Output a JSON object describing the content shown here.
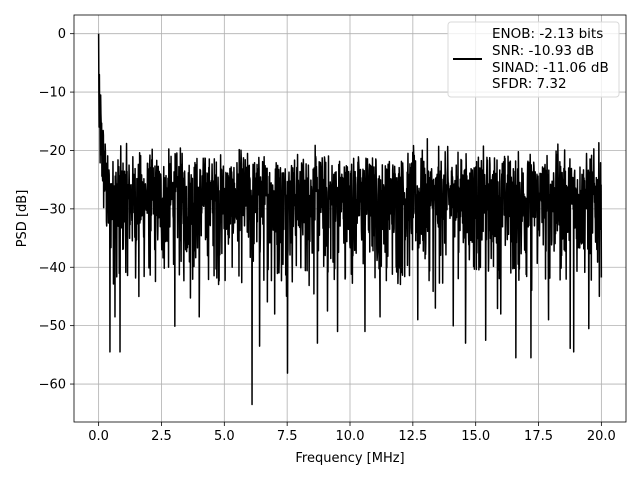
{
  "chart_data": {
    "type": "line",
    "title": "",
    "xlabel": "Frequency [MHz]",
    "ylabel": "PSD [dB]",
    "xlim": [
      -0.98,
      20.98
    ],
    "ylim": [
      -66.5,
      3.2
    ],
    "grid": true,
    "legend_position": "top-right",
    "xticks": [
      0.0,
      2.5,
      5.0,
      7.5,
      10.0,
      12.5,
      15.0,
      17.5,
      20.0
    ],
    "xtick_labels": [
      "0.0",
      "2.5",
      "5.0",
      "7.5",
      "10.0",
      "12.5",
      "15.0",
      "17.5",
      "20.0"
    ],
    "yticks": [
      0,
      -10,
      -20,
      -30,
      -40,
      -50,
      -60
    ],
    "ytick_labels": [
      "0",
      "−10",
      "−20",
      "−30",
      "−40",
      "−50",
      "−60"
    ],
    "series": [
      {
        "color": "#000000",
        "sample_count": 2000,
        "x_range": [
          0.0,
          20.0
        ],
        "dc_peak": {
          "x": 0.0,
          "y": 0.0
        },
        "noise_floor_mean": -29,
        "upper_envelope": -17,
        "lower_envelope": -43,
        "deep_nulls": [
          {
            "x": 0.45,
            "y": -54.5
          },
          {
            "x": 0.85,
            "y": -54.5
          },
          {
            "x": 0.65,
            "y": -48.5
          },
          {
            "x": 1.6,
            "y": -45.0
          },
          {
            "x": 4.0,
            "y": -48.5
          },
          {
            "x": 6.1,
            "y": -63.5
          },
          {
            "x": 6.4,
            "y": -53.5
          },
          {
            "x": 7.0,
            "y": -48.0
          },
          {
            "x": 8.7,
            "y": -53.0
          },
          {
            "x": 9.1,
            "y": -47.5
          },
          {
            "x": 9.5,
            "y": -51.0
          },
          {
            "x": 10.6,
            "y": -51.0
          },
          {
            "x": 11.2,
            "y": -48.5
          },
          {
            "x": 12.7,
            "y": -49.0
          },
          {
            "x": 13.4,
            "y": -47.0
          },
          {
            "x": 14.6,
            "y": -53.0
          },
          {
            "x": 15.4,
            "y": -52.5
          },
          {
            "x": 16.0,
            "y": -48.0
          },
          {
            "x": 16.6,
            "y": -55.5
          },
          {
            "x": 17.2,
            "y": -55.5
          },
          {
            "x": 17.9,
            "y": -49.0
          },
          {
            "x": 18.9,
            "y": -54.5
          },
          {
            "x": 19.5,
            "y": -50.5
          }
        ]
      }
    ],
    "legend_lines": [
      "ENOB: -2.13 bits",
      "SNR: -10.93 dB",
      "SINAD: -11.06 dB",
      "SFDR: 7.32"
    ]
  }
}
